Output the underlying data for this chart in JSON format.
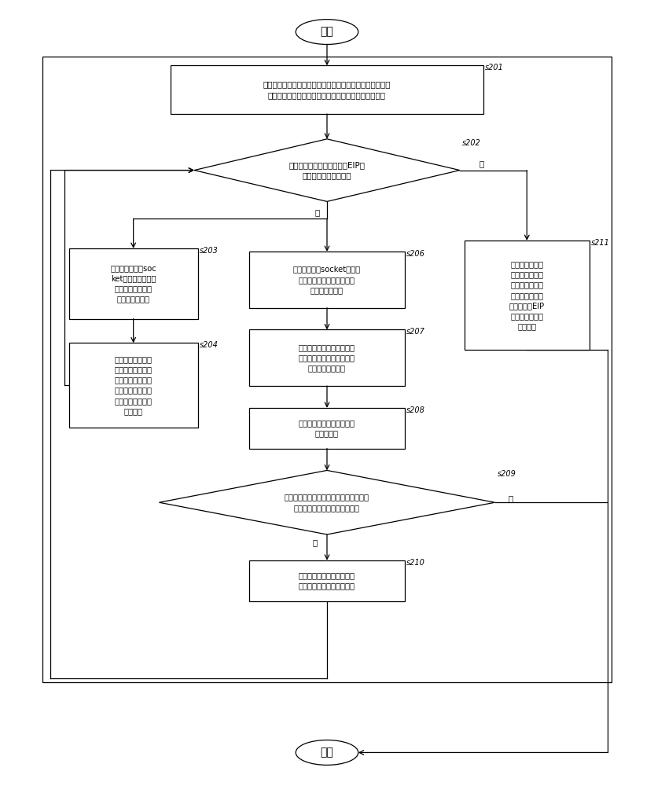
{
  "bg_color": "#ffffff",
  "start_text": "开始",
  "end_text": "结束",
  "s201_text": "提取被监视软件发包函数的内存地址，记录到发包断点地址\n寄存器中并根据地址设置发包函数断点，开始监控断点",
  "s202_text": "遇到断点后断下，判断当前EIP地\n址与断点地址是否匹配",
  "s203_text": "记录发包函数的soc\nket值、发包的数据\n长度和数据内容并\n保存至日志文件",
  "s204_text": "提取收包函数的内\n存地址，记录到收\n包断点地址寄存器\n并根据地址设置收\n包函数断点，开始\n监控断点",
  "s206_text": "记录包函数的socket值、收\n包的数据长度和数据内容并\n保存至日志文件",
  "s207_text": "记录当前网络数据包构造过\n程的层次和函数调用顺序，\n保存到日志文件；",
  "s208_text": "设置分析层次，查找调用函\n数的地址；",
  "s209_text": "判断查找到的调用函数地址是否在结束机\n器码前且在预设的分析层次之内",
  "s210_text": "设置网络数据包解析断点，\n并查找下一个调用函数地址",
  "s211_text": "记录当前跳转的\n层次，函数调用\n的顺序，当前所\n有寄存器数据，\n堆栈数据，EIP\n地址，并保存到\n日志文件",
  "yes_text": "是",
  "no_text": "否",
  "labels": [
    "s201",
    "s202",
    "s203",
    "s204",
    "s206",
    "s207",
    "s208",
    "s209",
    "s210",
    "s211"
  ]
}
